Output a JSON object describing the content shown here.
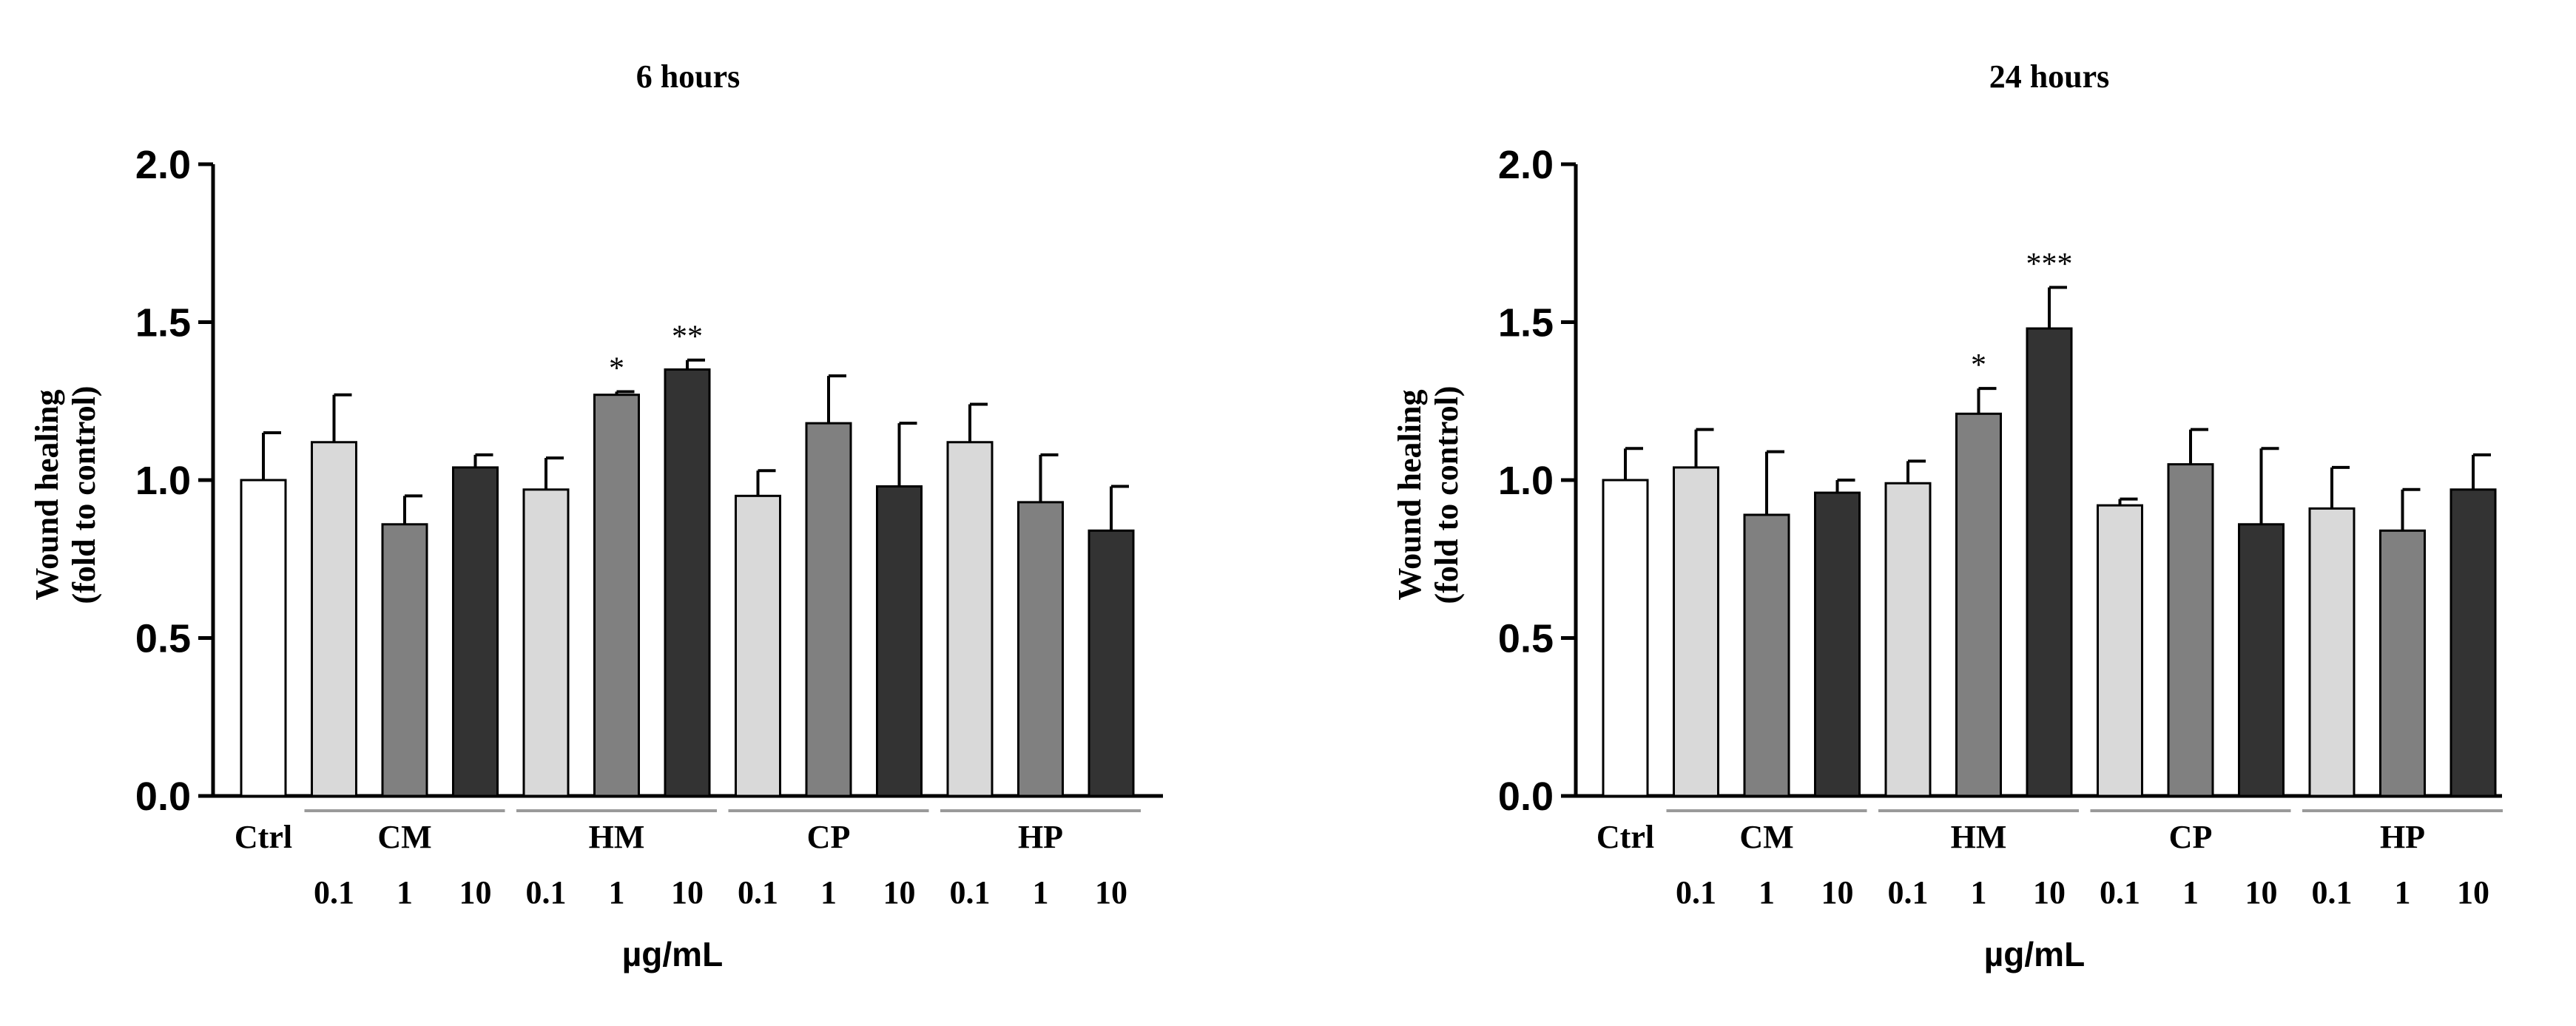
{
  "colors": {
    "ctrl": "#ffffff",
    "dose_0_1": "#d9d9d9",
    "dose_1": "#808080",
    "dose_10": "#333333",
    "axis": "#000000",
    "group_line": "#9a9a9a"
  },
  "chart_data": [
    {
      "type": "bar",
      "title": "6 hours",
      "ylabel_line1": "Wound healing",
      "ylabel_line2": "(fold to control)",
      "xlabel": "µg/mL",
      "ylim": [
        0,
        2.0
      ],
      "yticks": [
        "0.0",
        "0.5",
        "1.0",
        "1.5",
        "2.0"
      ],
      "ctrl_label": "Ctrl",
      "groups": [
        "CM",
        "HM",
        "CP",
        "HP"
      ],
      "doses": [
        "0.1",
        "1",
        "10"
      ],
      "bars": [
        {
          "label": "Ctrl",
          "group": "",
          "dose": "",
          "value": 1.0,
          "error": 0.15,
          "sig": ""
        },
        {
          "label": "CM 0.1",
          "group": "CM",
          "dose": "0.1",
          "value": 1.12,
          "error": 0.15,
          "sig": ""
        },
        {
          "label": "CM 1",
          "group": "CM",
          "dose": "1",
          "value": 0.86,
          "error": 0.09,
          "sig": ""
        },
        {
          "label": "CM 10",
          "group": "CM",
          "dose": "10",
          "value": 1.04,
          "error": 0.04,
          "sig": ""
        },
        {
          "label": "HM 0.1",
          "group": "HM",
          "dose": "0.1",
          "value": 0.97,
          "error": 0.1,
          "sig": ""
        },
        {
          "label": "HM 1",
          "group": "HM",
          "dose": "1",
          "value": 1.27,
          "error": 0.01,
          "sig": "*"
        },
        {
          "label": "HM 10",
          "group": "HM",
          "dose": "10",
          "value": 1.35,
          "error": 0.03,
          "sig": "**"
        },
        {
          "label": "CP 0.1",
          "group": "CP",
          "dose": "0.1",
          "value": 0.95,
          "error": 0.08,
          "sig": ""
        },
        {
          "label": "CP 1",
          "group": "CP",
          "dose": "1",
          "value": 1.18,
          "error": 0.15,
          "sig": ""
        },
        {
          "label": "CP 10",
          "group": "CP",
          "dose": "10",
          "value": 0.98,
          "error": 0.2,
          "sig": ""
        },
        {
          "label": "HP 0.1",
          "group": "HP",
          "dose": "0.1",
          "value": 1.12,
          "error": 0.12,
          "sig": ""
        },
        {
          "label": "HP 1",
          "group": "HP",
          "dose": "1",
          "value": 0.93,
          "error": 0.15,
          "sig": ""
        },
        {
          "label": "HP 10",
          "group": "HP",
          "dose": "10",
          "value": 0.84,
          "error": 0.14,
          "sig": ""
        }
      ]
    },
    {
      "type": "bar",
      "title": "24 hours",
      "ylabel_line1": "Wound healing",
      "ylabel_line2": "(fold to control)",
      "xlabel": "µg/mL",
      "ylim": [
        0,
        2.0
      ],
      "yticks": [
        "0.0",
        "0.5",
        "1.0",
        "1.5",
        "2.0"
      ],
      "ctrl_label": "Ctrl",
      "groups": [
        "CM",
        "HM",
        "CP",
        "HP"
      ],
      "doses": [
        "0.1",
        "1",
        "10"
      ],
      "bars": [
        {
          "label": "Ctrl",
          "group": "",
          "dose": "",
          "value": 1.0,
          "error": 0.1,
          "sig": ""
        },
        {
          "label": "CM 0.1",
          "group": "CM",
          "dose": "0.1",
          "value": 1.04,
          "error": 0.12,
          "sig": ""
        },
        {
          "label": "CM 1",
          "group": "CM",
          "dose": "1",
          "value": 0.89,
          "error": 0.2,
          "sig": ""
        },
        {
          "label": "CM 10",
          "group": "CM",
          "dose": "10",
          "value": 0.96,
          "error": 0.04,
          "sig": ""
        },
        {
          "label": "HM 0.1",
          "group": "HM",
          "dose": "0.1",
          "value": 0.99,
          "error": 0.07,
          "sig": ""
        },
        {
          "label": "HM 1",
          "group": "HM",
          "dose": "1",
          "value": 1.21,
          "error": 0.08,
          "sig": "*"
        },
        {
          "label": "HM 10",
          "group": "HM",
          "dose": "10",
          "value": 1.48,
          "error": 0.13,
          "sig": "***"
        },
        {
          "label": "CP 0.1",
          "group": "CP",
          "dose": "0.1",
          "value": 0.92,
          "error": 0.02,
          "sig": ""
        },
        {
          "label": "CP 1",
          "group": "CP",
          "dose": "1",
          "value": 1.05,
          "error": 0.11,
          "sig": ""
        },
        {
          "label": "CP 10",
          "group": "CP",
          "dose": "10",
          "value": 0.86,
          "error": 0.24,
          "sig": ""
        },
        {
          "label": "HP 0.1",
          "group": "HP",
          "dose": "0.1",
          "value": 0.91,
          "error": 0.13,
          "sig": ""
        },
        {
          "label": "HP 1",
          "group": "HP",
          "dose": "1",
          "value": 0.84,
          "error": 0.13,
          "sig": ""
        },
        {
          "label": "HP 10",
          "group": "HP",
          "dose": "10",
          "value": 0.97,
          "error": 0.11,
          "sig": ""
        }
      ]
    }
  ]
}
